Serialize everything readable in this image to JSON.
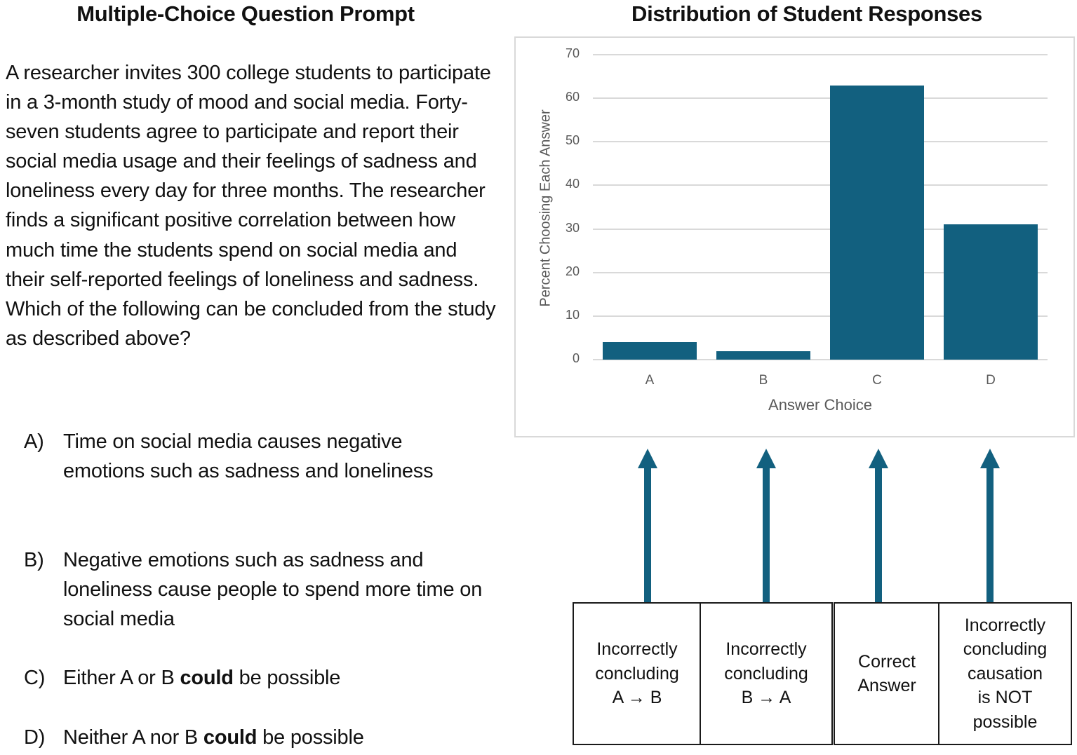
{
  "left_panel": {
    "title": "Multiple-Choice Question Prompt",
    "prompt": "A researcher invites 300 college students to participate in a 3-month study of mood and social media. Forty-seven students agree to participate and report their social media usage and their feelings of sadness and loneliness every day for three months. The researcher finds a significant positive correlation between how much time the students spend on social media and their self-reported feelings of loneliness and sadness. Which of the following can be concluded from the study as described above?",
    "options": [
      {
        "letter": "A)",
        "text": "Time on social media causes negative emotions such as sadness and loneliness"
      },
      {
        "letter": "B)",
        "text": "Negative emotions such as sadness and loneliness cause people to spend more time on social media"
      },
      {
        "letter": "C)",
        "pre": "Either A or B ",
        "bold": "could",
        "post": " be possible"
      },
      {
        "letter": "D)",
        "pre": "Neither A nor B ",
        "bold": "could",
        "post": " be possible"
      }
    ]
  },
  "right_panel": {
    "title": "Distribution of Student Responses",
    "annotations": [
      {
        "line1": "Incorrectly",
        "line2": "concluding",
        "line3": "A → B"
      },
      {
        "line1": "Incorrectly",
        "line2": "concluding",
        "line3": "B → A"
      },
      {
        "line1": "Correct",
        "line2": "Answer"
      },
      {
        "line1": "Incorrectly",
        "line2": "concluding",
        "line3": "causation",
        "line4": "is NOT",
        "line5": "possible"
      }
    ],
    "arrow_icon": "up-arrow-icon"
  },
  "colors": {
    "bar": "#12607f",
    "gridline": "#d9d9d9",
    "axis_text": "#595959"
  },
  "chart_data": {
    "type": "bar",
    "title": "Distribution of Student Responses",
    "categories": [
      "A",
      "B",
      "C",
      "D"
    ],
    "values": [
      4,
      2,
      63,
      31
    ],
    "xlabel": "Answer Choice",
    "ylabel": "Percent Choosing Each Answer",
    "ylim": [
      0,
      70
    ],
    "yticks": [
      "0",
      "10",
      "20",
      "30",
      "40",
      "50",
      "60",
      "70"
    ],
    "grid": true,
    "legend": null,
    "annotations": [
      "A: Incorrectly concluding A → B",
      "B: Incorrectly concluding B → A",
      "C: Correct Answer",
      "D: Incorrectly concluding causation is NOT possible"
    ]
  }
}
